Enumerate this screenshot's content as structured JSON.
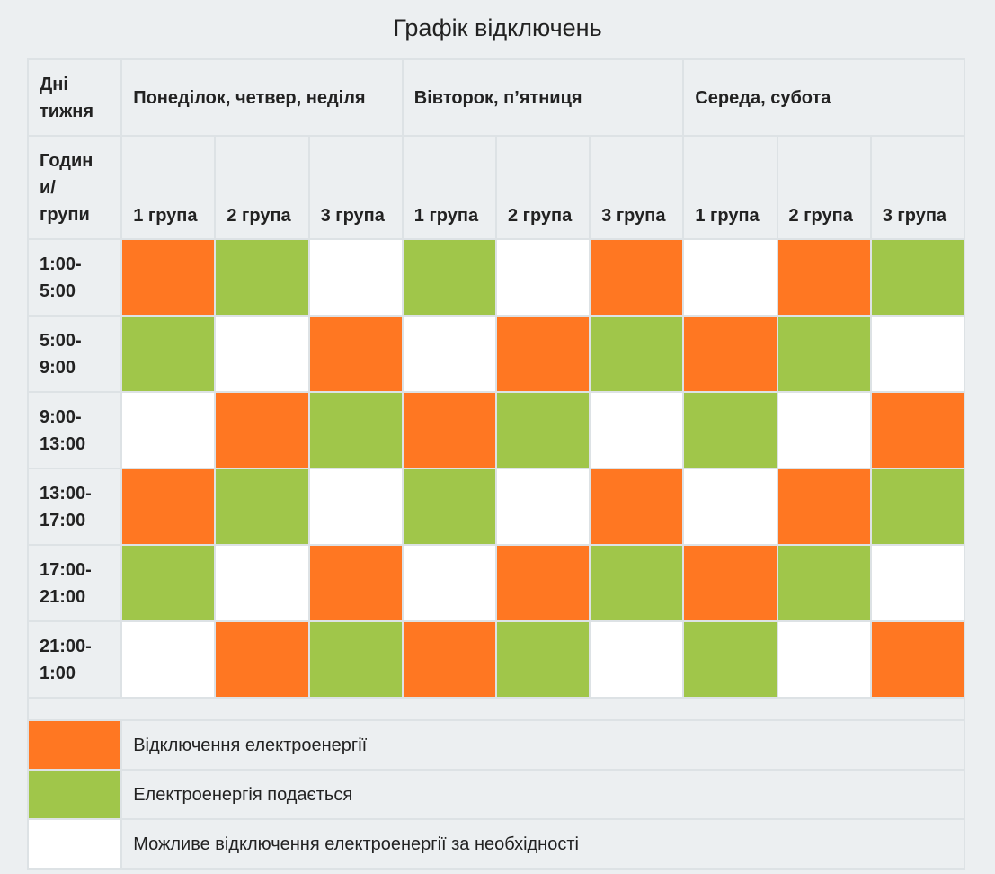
{
  "title": "Графік відключень",
  "colors": {
    "off": "#ff7722",
    "on": "#a0c64a",
    "maybe": "#ffffff"
  },
  "header": {
    "days_label": "Дні тижня",
    "day_groups": [
      "Понеділок, четвер, неділя",
      "Вівторок, п’ятниця",
      "Середа, субота"
    ],
    "hours_label": "Годин и/ групи",
    "groups": [
      "1 група",
      "2 група",
      "3 група",
      "1 група",
      "2 група",
      "3 група",
      "1 група",
      "2 група",
      "3 група"
    ]
  },
  "rows": [
    {
      "time": "1:00- 5:00",
      "cells": [
        "off",
        "on",
        "maybe",
        "on",
        "maybe",
        "off",
        "maybe",
        "off",
        "on"
      ]
    },
    {
      "time": "5:00- 9:00",
      "cells": [
        "on",
        "maybe",
        "off",
        "maybe",
        "off",
        "on",
        "off",
        "on",
        "maybe"
      ]
    },
    {
      "time": "9:00- 13:00",
      "cells": [
        "maybe",
        "off",
        "on",
        "off",
        "on",
        "maybe",
        "on",
        "maybe",
        "off"
      ]
    },
    {
      "time": "13:00- 17:00",
      "cells": [
        "off",
        "on",
        "maybe",
        "on",
        "maybe",
        "off",
        "maybe",
        "off",
        "on"
      ]
    },
    {
      "time": "17:00- 21:00",
      "cells": [
        "on",
        "maybe",
        "off",
        "maybe",
        "off",
        "on",
        "off",
        "on",
        "maybe"
      ]
    },
    {
      "time": "21:00- 1:00",
      "cells": [
        "maybe",
        "off",
        "on",
        "off",
        "on",
        "maybe",
        "on",
        "maybe",
        "off"
      ]
    }
  ],
  "legend": [
    {
      "status": "off",
      "label": "Відключення електроенергії"
    },
    {
      "status": "on",
      "label": "Електроенергія подається"
    },
    {
      "status": "maybe",
      "label": "Можливе відключення електроенергії за необхідності"
    }
  ]
}
